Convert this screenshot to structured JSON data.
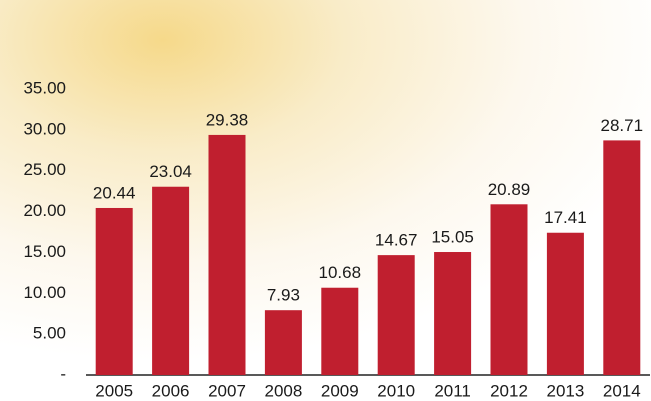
{
  "chart_data": {
    "type": "bar",
    "categories": [
      "2005",
      "2006",
      "2007",
      "2008",
      "2009",
      "2010",
      "2011",
      "2012",
      "2013",
      "2014"
    ],
    "values": [
      20.44,
      23.04,
      29.38,
      7.93,
      10.68,
      14.67,
      15.05,
      20.89,
      17.41,
      28.71
    ],
    "color": "#c01f2f",
    "ylim": [
      0,
      35
    ],
    "yticks": [
      {
        "value": 0,
        "label": "-"
      },
      {
        "value": 5,
        "label": "5.00"
      },
      {
        "value": 10,
        "label": "10.00"
      },
      {
        "value": 15,
        "label": "15.00"
      },
      {
        "value": 20,
        "label": "20.00"
      },
      {
        "value": 25,
        "label": "25.00"
      },
      {
        "value": 30,
        "label": "30.00"
      },
      {
        "value": 35,
        "label": "35.00"
      }
    ],
    "grid": false
  }
}
